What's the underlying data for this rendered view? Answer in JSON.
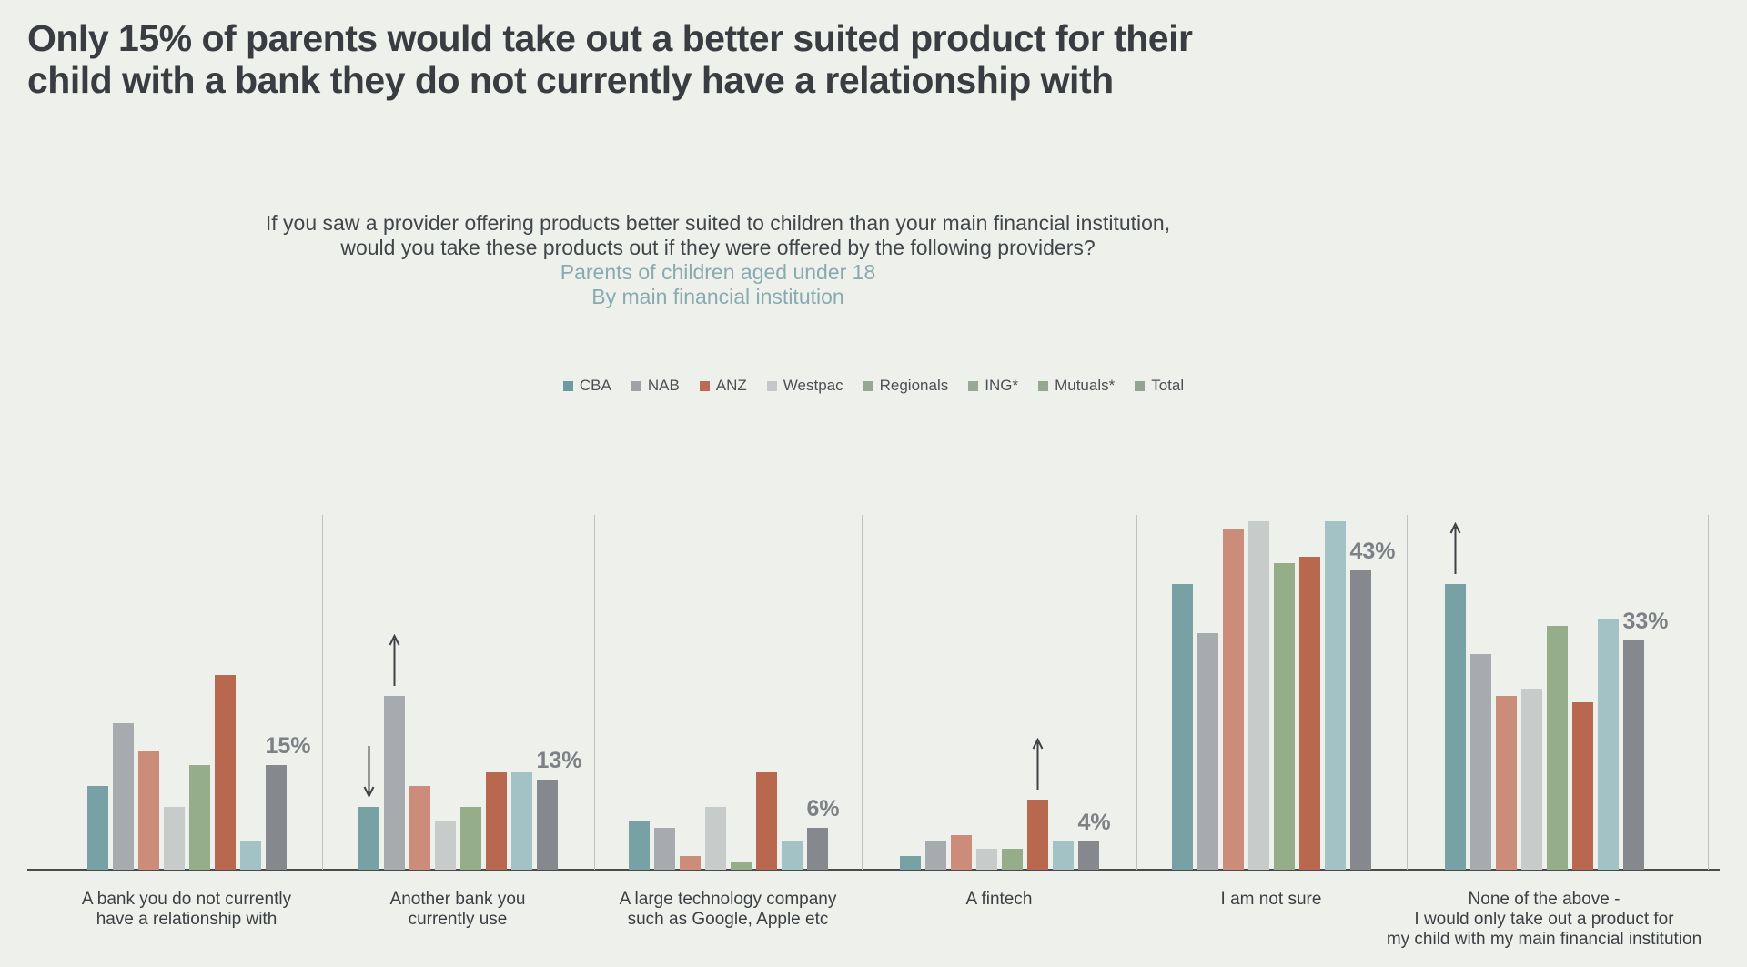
{
  "page": {
    "background": "#eef0eb"
  },
  "title": {
    "line1": "Only 15% of parents would take out a better suited product for their",
    "line2": "child with a bank they do not currently have a relationship with"
  },
  "subtitle": {
    "question_line1": "If you saw a provider offering products better suited to children than your main financial institution,",
    "question_line2": "would you take these products out if they were offered by the following providers?",
    "audience": "Parents of children aged under 18",
    "segment": "By main financial institution",
    "accent_color": "#88aab0"
  },
  "legend": {
    "items": [
      {
        "label": "CBA",
        "swatch": "#6f99a1"
      },
      {
        "label": "NAB",
        "swatch": "#9fa3a8"
      },
      {
        "label": "ANZ",
        "swatch": "#bb6b55"
      },
      {
        "label": "Westpac",
        "swatch": "#c5c8c9"
      },
      {
        "label": "Regionals",
        "swatch": "#96a893"
      },
      {
        "label": "ING*",
        "swatch": "#9aa898"
      },
      {
        "label": "Mutuals*",
        "swatch": "#95a88f"
      },
      {
        "label": "Total",
        "swatch": "#93a394"
      }
    ]
  },
  "chart_data": {
    "type": "bar",
    "unit": "%",
    "ylim": [
      0,
      56
    ],
    "grid": false,
    "legend_position": "top-center",
    "series_names": [
      "CBA",
      "NAB",
      "ANZ",
      "Westpac",
      "Regionals",
      "ING*",
      "Mutuals*",
      "Total"
    ],
    "series_colors": {
      "CBA": "#78a1a6",
      "NAB": "#a7abaf",
      "ANZ": "#cb8d7a",
      "Westpac": "#c7cbc9",
      "Regionals": "#95ad89",
      "ING*": "#b8684f",
      "Mutuals*": "#a3c2c5",
      "Total": "#85898d"
    },
    "groups": [
      {
        "label_lines": [
          "A bank you do not currently",
          "have a relationship with"
        ],
        "values": [
          12,
          21,
          17,
          9,
          15,
          28,
          4,
          15
        ],
        "total_label": "15%",
        "arrows": {}
      },
      {
        "label_lines": [
          "Another bank you",
          "currently use"
        ],
        "values": [
          9,
          25,
          12,
          7,
          9,
          14,
          14,
          13
        ],
        "total_label": "13%",
        "arrows": {
          "CBA": "down",
          "NAB": "up"
        }
      },
      {
        "label_lines": [
          "A large technology company",
          "such as Google, Apple etc"
        ],
        "values": [
          7,
          6,
          2,
          9,
          1,
          14,
          4,
          6
        ],
        "total_label": "6%",
        "arrows": {}
      },
      {
        "label_lines": [
          "A fintech"
        ],
        "values": [
          2,
          4,
          5,
          3,
          3,
          10,
          4,
          4
        ],
        "total_label": "4%",
        "arrows": {
          "ING*": "up"
        }
      },
      {
        "label_lines": [
          "I am not sure"
        ],
        "values": [
          41,
          34,
          49,
          50,
          44,
          45,
          50,
          43
        ],
        "total_label": "43%",
        "arrows": {}
      },
      {
        "label_lines": [
          "None of the above -",
          "I would only take out a product for",
          "my child with my main financial institution"
        ],
        "values": [
          41,
          31,
          25,
          26,
          35,
          24,
          36,
          33
        ],
        "total_label": "33%",
        "arrows": {
          "CBA": "up"
        }
      }
    ]
  }
}
